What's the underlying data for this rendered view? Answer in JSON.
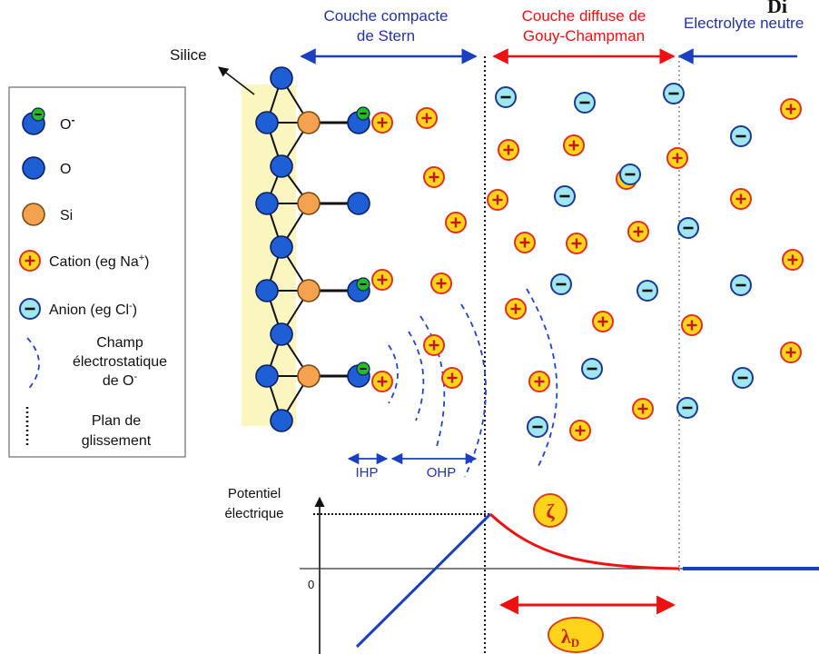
{
  "header": {
    "corner": "Di",
    "region_compact": [
      "Couche compacte",
      "de Stern"
    ],
    "region_diffuse": [
      "Couche diffuse de",
      "Gouy-Champman"
    ],
    "region_neutral": "Electrolyte neutre"
  },
  "silica_label": "Silice",
  "legend": {
    "o_minus": "O",
    "o_minus_sup": "-",
    "o": "O",
    "si": "Si",
    "cation": "Cation (eg Na",
    "cation_sup": "+",
    "cation_close": ")",
    "anion": "Anion (eg Cl",
    "anion_sup": "-",
    "anion_close": ")",
    "field_lines": [
      "Champ",
      "électrostatique",
      "de O"
    ],
    "field_sup": "-",
    "slip_plane": [
      "Plan de",
      "glissement"
    ]
  },
  "planes": {
    "ihp": "IHP",
    "ohp": "OHP"
  },
  "potential": {
    "ylabel": [
      "Potentiel",
      "électrique"
    ],
    "zero": "0",
    "zeta_symbol": "ζ",
    "debye_symbol": "λ",
    "debye_sub": "D"
  },
  "colors": {
    "blue_text": "#2233aa",
    "red": "#ee1111",
    "oxygen": "#1f5fd6",
    "silicon": "#f4a150",
    "cation_fill": "#ffd41a",
    "anion_fill": "#9fe6f0",
    "silica_band": "#fbf5c0"
  },
  "icons": {
    "cation": "plus-in-circle-icon",
    "anion": "minus-in-circle-icon",
    "oxygen": "blue-sphere-icon",
    "silicon": "orange-sphere-icon"
  }
}
